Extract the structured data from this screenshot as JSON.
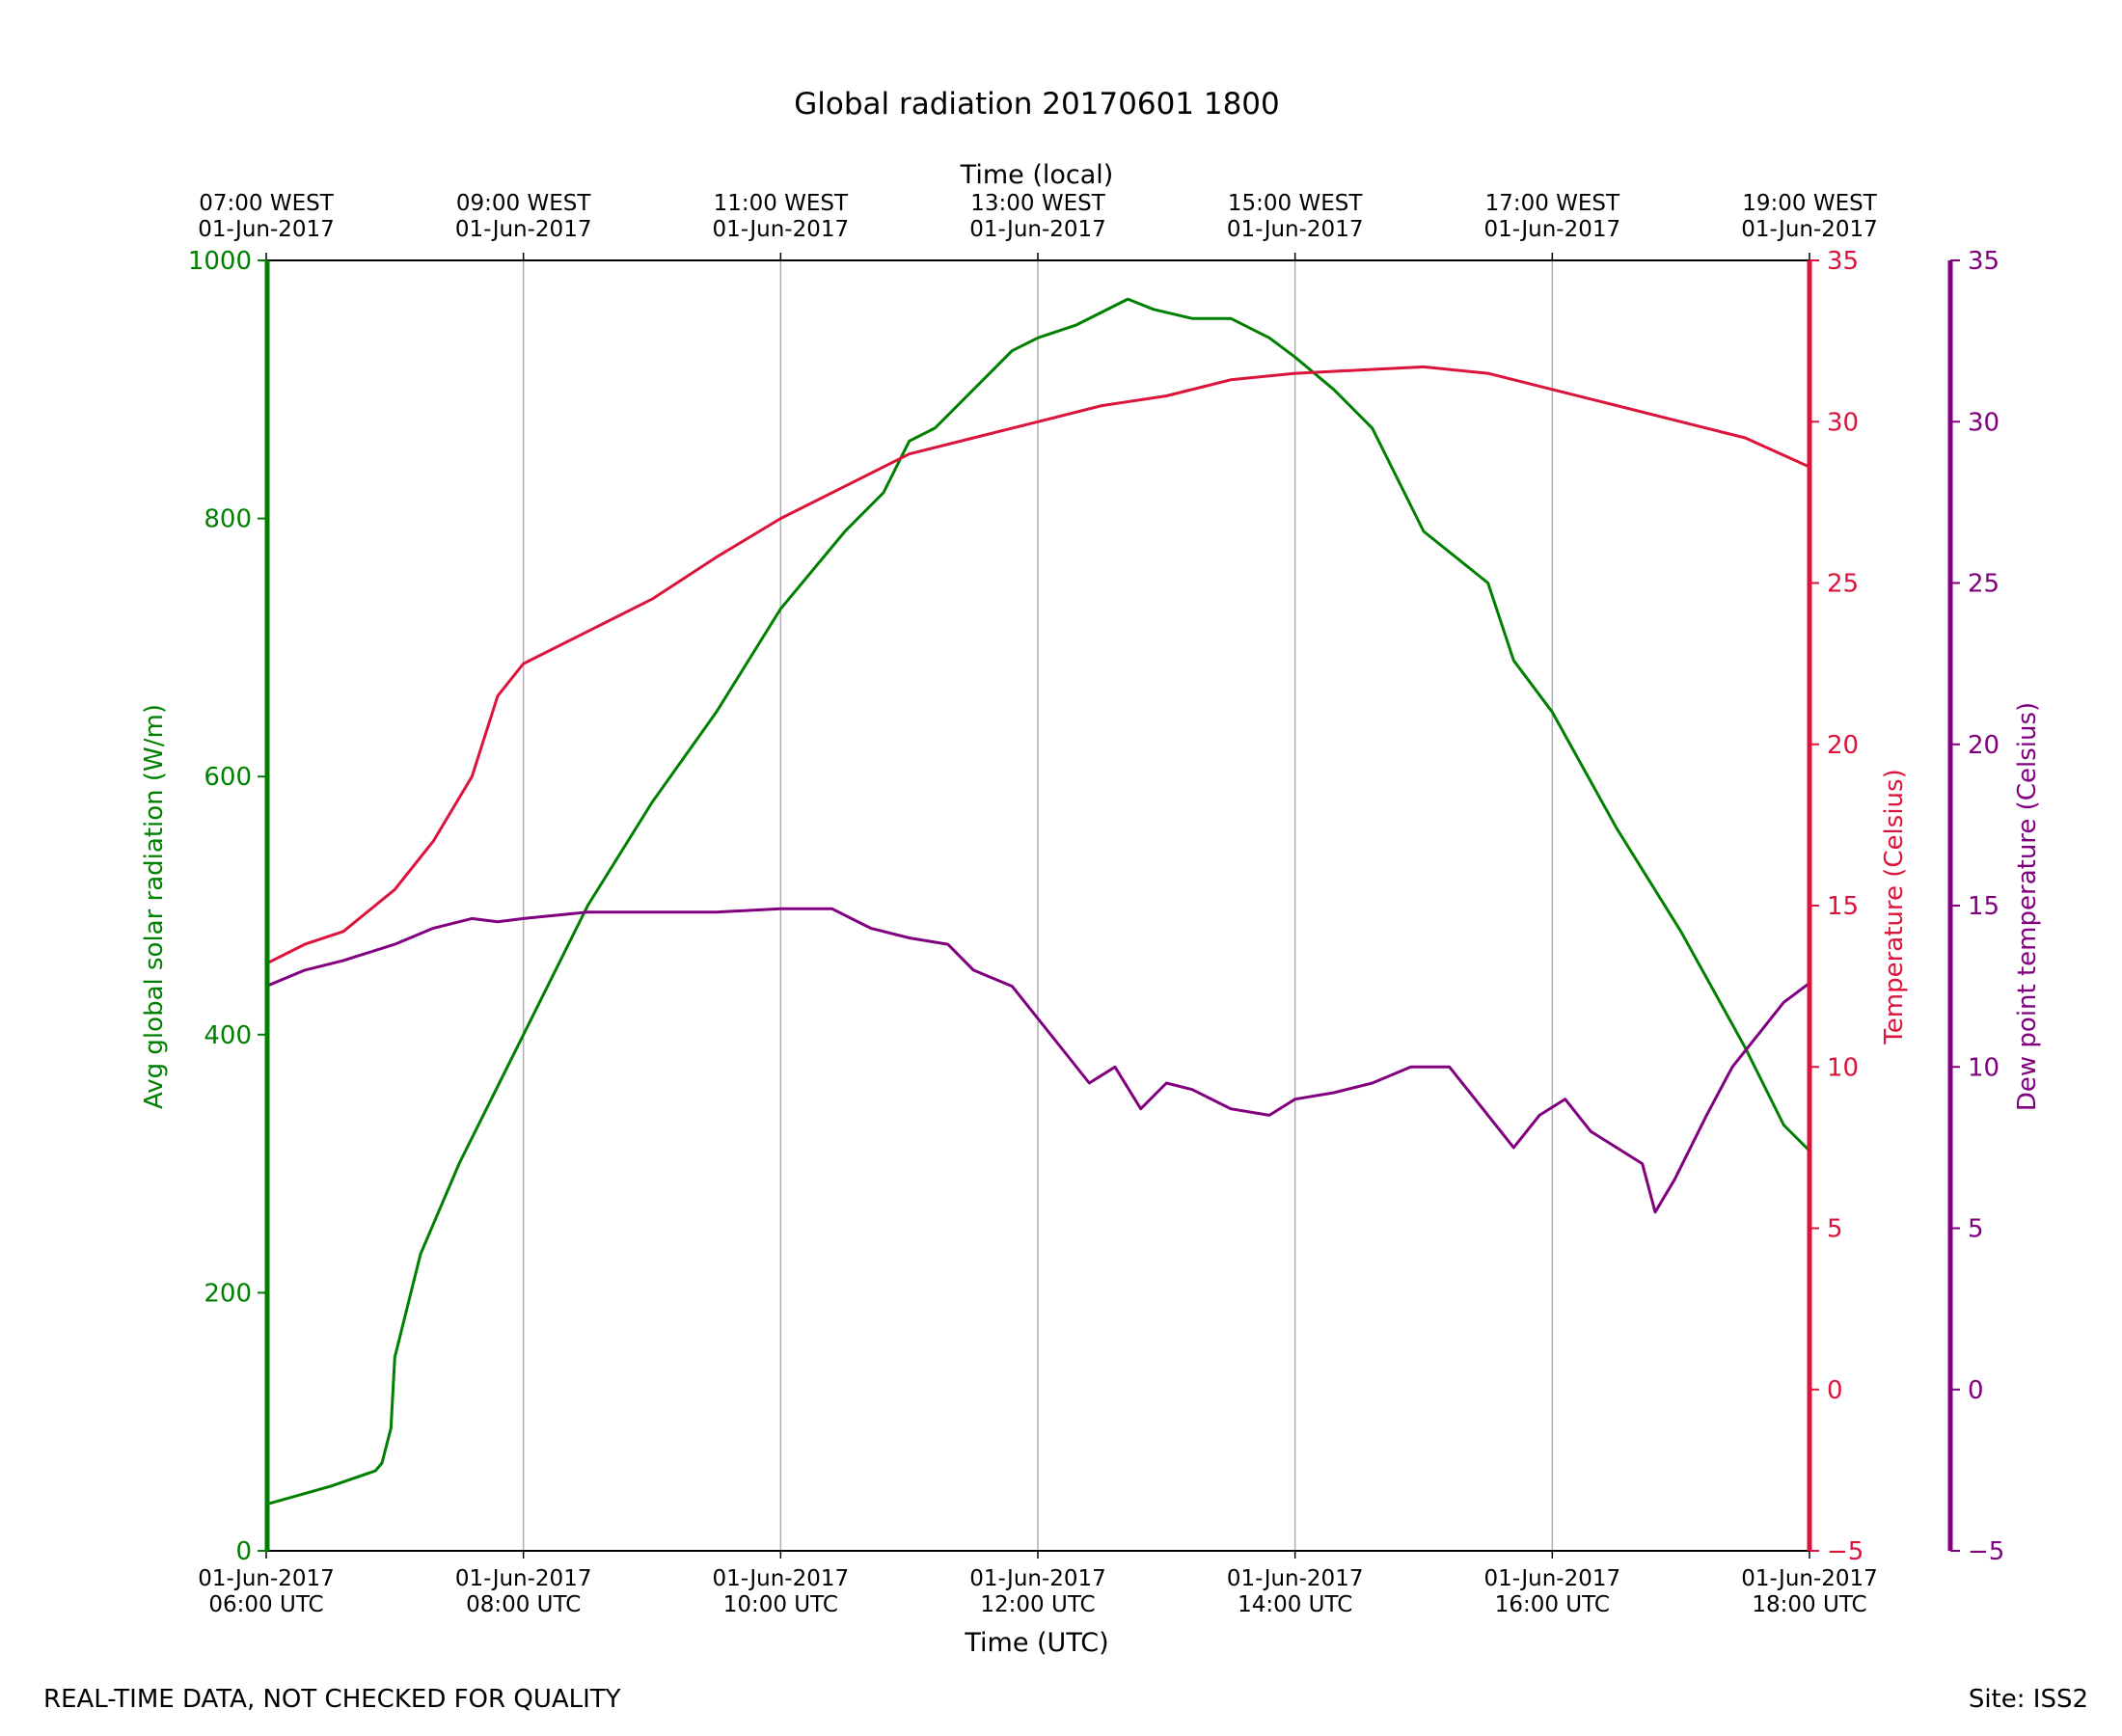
{
  "chart_data": {
    "type": "line",
    "title": "Global radiation 20170601 1800",
    "top_axis_label": "Time (local)",
    "xlabel": "Time (UTC)",
    "footer_left": "REAL-TIME DATA, NOT CHECKED FOR QUALITY",
    "footer_right": "Site: ISS2",
    "x_range_hours_utc": [
      6,
      18
    ],
    "bottom_ticks": [
      {
        "hour": 6,
        "line1": "01-Jun-2017",
        "line2": "06:00 UTC"
      },
      {
        "hour": 8,
        "line1": "01-Jun-2017",
        "line2": "08:00 UTC"
      },
      {
        "hour": 10,
        "line1": "01-Jun-2017",
        "line2": "10:00 UTC"
      },
      {
        "hour": 12,
        "line1": "01-Jun-2017",
        "line2": "12:00 UTC"
      },
      {
        "hour": 14,
        "line1": "01-Jun-2017",
        "line2": "14:00 UTC"
      },
      {
        "hour": 16,
        "line1": "01-Jun-2017",
        "line2": "16:00 UTC"
      },
      {
        "hour": 18,
        "line1": "01-Jun-2017",
        "line2": "18:00 UTC"
      }
    ],
    "top_ticks": [
      {
        "hour": 6,
        "line1": "07:00 WEST",
        "line2": "01-Jun-2017"
      },
      {
        "hour": 8,
        "line1": "09:00 WEST",
        "line2": "01-Jun-2017"
      },
      {
        "hour": 10,
        "line1": "11:00 WEST",
        "line2": "01-Jun-2017"
      },
      {
        "hour": 12,
        "line1": "13:00 WEST",
        "line2": "01-Jun-2017"
      },
      {
        "hour": 14,
        "line1": "15:00 WEST",
        "line2": "01-Jun-2017"
      },
      {
        "hour": 16,
        "line1": "17:00 WEST",
        "line2": "01-Jun-2017"
      },
      {
        "hour": 18,
        "line1": "19:00 WEST",
        "line2": "01-Jun-2017"
      }
    ],
    "axes": {
      "radiation": {
        "label": "Avg global solar radiation (W/m)",
        "color": "#008000",
        "ylim": [
          0,
          1000
        ],
        "ticks": [
          0,
          200,
          400,
          600,
          800,
          1000
        ]
      },
      "temperature": {
        "label": "Temperature (Celsius)",
        "color": "#dc143c",
        "ylim": [
          -5,
          35
        ],
        "ticks": [
          -5,
          0,
          5,
          10,
          15,
          20,
          25,
          30,
          35
        ]
      },
      "dewpoint": {
        "label": "Dew point temperature (Celsius)",
        "color": "#800080",
        "ylim": [
          -5,
          35
        ],
        "ticks": [
          -5,
          0,
          5,
          10,
          15,
          20,
          25,
          30,
          35
        ]
      }
    },
    "series": [
      {
        "name": "Avg global solar radiation",
        "axis": "radiation",
        "color": "#008000",
        "x": [
          6.0,
          6.5,
          6.85,
          6.9,
          6.97,
          7.0,
          7.2,
          7.5,
          8.0,
          8.5,
          9.0,
          9.5,
          10.0,
          10.5,
          10.8,
          11.0,
          11.2,
          11.5,
          11.8,
          12.0,
          12.3,
          12.5,
          12.7,
          12.9,
          13.2,
          13.5,
          13.8,
          14.0,
          14.3,
          14.6,
          15.0,
          15.5,
          15.7,
          16.0,
          16.5,
          17.0,
          17.5,
          17.8,
          18.0
        ],
        "y": [
          36,
          50,
          62,
          68,
          95,
          150,
          230,
          300,
          400,
          500,
          580,
          650,
          730,
          790,
          820,
          860,
          870,
          900,
          930,
          940,
          950,
          960,
          970,
          962,
          955,
          955,
          940,
          925,
          900,
          870,
          790,
          750,
          690,
          650,
          560,
          480,
          390,
          330,
          310
        ]
      },
      {
        "name": "Temperature",
        "axis": "temperature",
        "color": "#dc143c",
        "x": [
          6.0,
          6.3,
          6.6,
          7.0,
          7.3,
          7.6,
          7.8,
          8.0,
          8.5,
          9.0,
          9.5,
          10.0,
          10.5,
          11.0,
          11.5,
          12.0,
          12.5,
          13.0,
          13.5,
          14.0,
          14.5,
          15.0,
          15.5,
          16.0,
          16.5,
          17.0,
          17.5,
          18.0
        ],
        "y": [
          13.2,
          13.8,
          14.2,
          15.5,
          17.0,
          19.0,
          21.5,
          22.5,
          23.5,
          24.5,
          25.8,
          27.0,
          28.0,
          29.0,
          29.5,
          30.0,
          30.5,
          30.8,
          31.3,
          31.5,
          31.6,
          31.7,
          31.5,
          31.0,
          30.5,
          30.0,
          29.5,
          28.6
        ]
      },
      {
        "name": "Dew point temperature",
        "axis": "dewpoint",
        "color": "#800080",
        "x": [
          6.0,
          6.3,
          6.6,
          7.0,
          7.3,
          7.6,
          7.8,
          8.0,
          8.5,
          9.0,
          9.5,
          10.0,
          10.4,
          10.7,
          11.0,
          11.3,
          11.5,
          11.8,
          12.0,
          12.2,
          12.4,
          12.6,
          12.8,
          13.0,
          13.2,
          13.5,
          13.8,
          14.0,
          14.3,
          14.6,
          14.9,
          15.2,
          15.5,
          15.7,
          15.9,
          16.1,
          16.3,
          16.5,
          16.7,
          16.8,
          16.95,
          17.2,
          17.4,
          17.6,
          17.8,
          18.0
        ],
        "y": [
          12.5,
          13.0,
          13.3,
          13.8,
          14.3,
          14.6,
          14.5,
          14.6,
          14.8,
          14.8,
          14.8,
          14.9,
          14.9,
          14.3,
          14.0,
          13.8,
          13.0,
          12.5,
          11.5,
          10.5,
          9.5,
          10.0,
          8.7,
          9.5,
          9.3,
          8.7,
          8.5,
          9.0,
          9.2,
          9.5,
          10.0,
          10.0,
          8.5,
          7.5,
          8.5,
          9.0,
          8.0,
          7.5,
          7.0,
          5.5,
          6.5,
          8.5,
          10.0,
          11.0,
          12.0,
          12.6
        ]
      }
    ]
  }
}
